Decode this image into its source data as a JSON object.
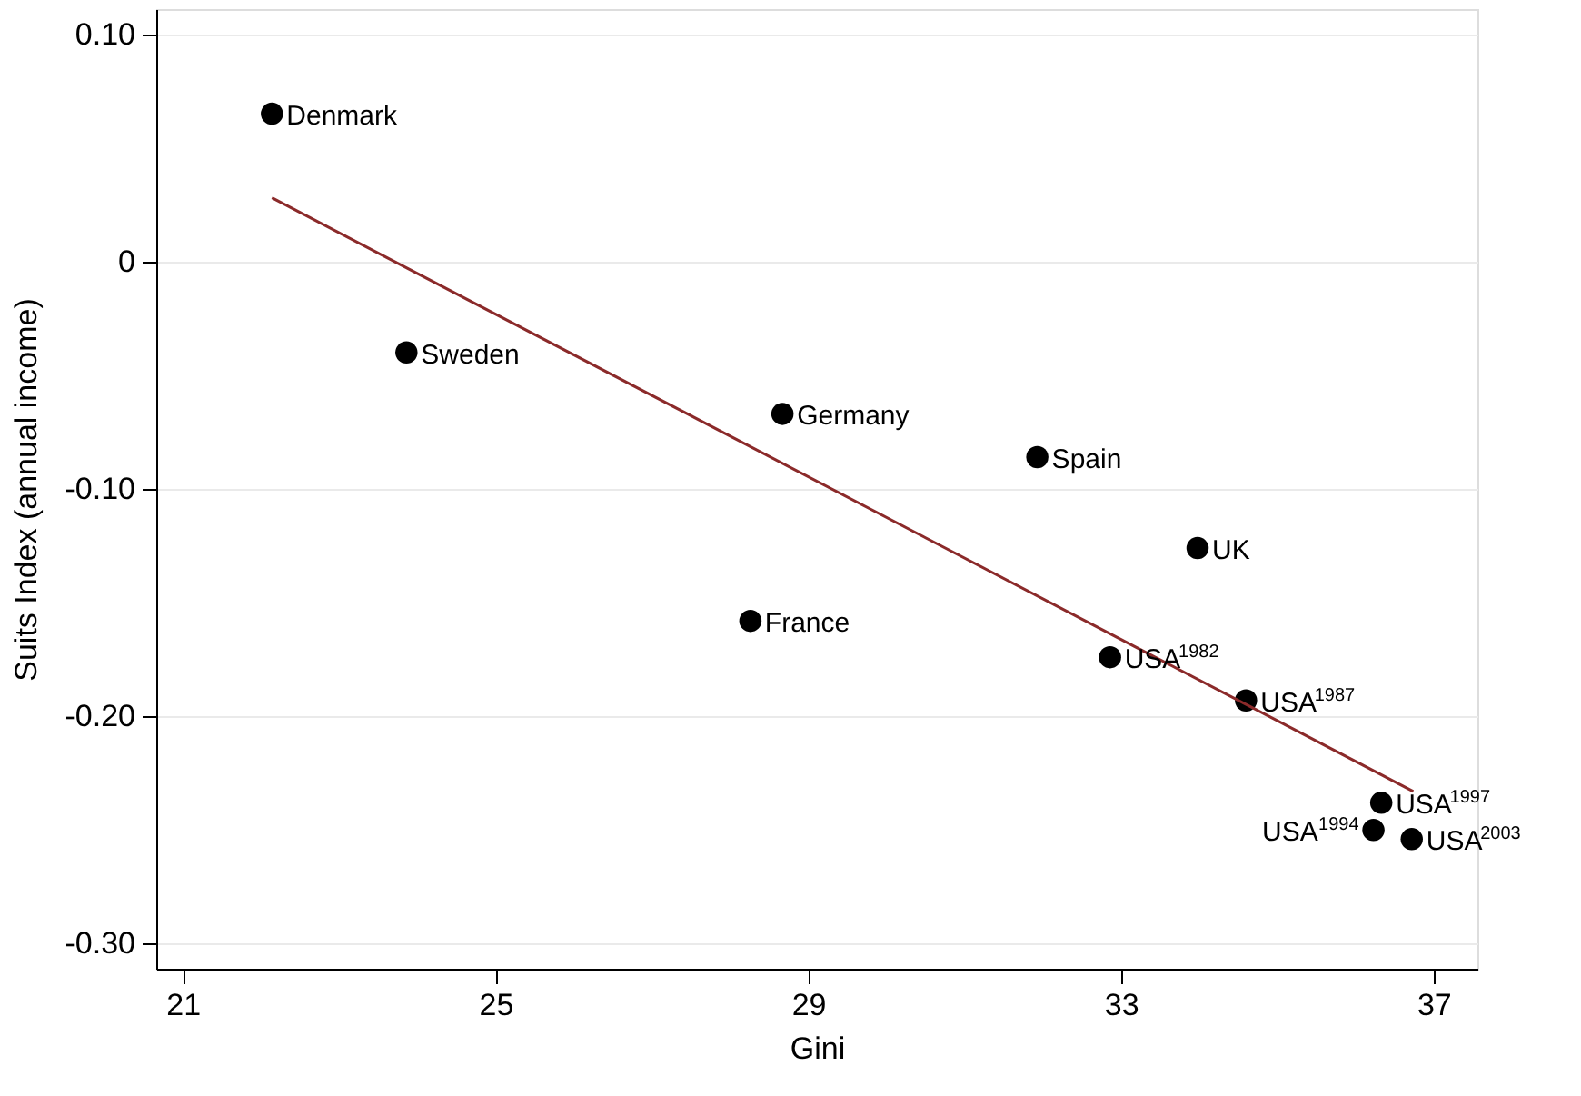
{
  "chart_data": {
    "type": "scatter",
    "xlabel": "Gini",
    "ylabel": "Suits Index (annual income)",
    "xlim": [
      20.66,
      37.56
    ],
    "ylim": [
      -0.311,
      0.111
    ],
    "xticks": [
      21,
      25,
      29,
      33,
      37
    ],
    "yticks": [
      {
        "value": 0.1,
        "label": "0.10"
      },
      0,
      {
        "value": -0.1,
        "label": "-0.10"
      },
      {
        "value": -0.2,
        "label": "-0.20"
      },
      {
        "value": -0.3,
        "label": "-0.30"
      }
    ],
    "grid": "y",
    "series": [
      {
        "marker": "circle",
        "color": "#000000",
        "x": [
          22.14,
          23.86,
          28.67,
          28.26,
          31.93,
          33.98,
          32.86,
          34.6,
          36.33,
          36.23,
          36.72
        ],
        "values": [
          0.065,
          -0.04,
          -0.067,
          -0.158,
          -0.086,
          -0.126,
          -0.174,
          -0.193,
          -0.238,
          -0.25,
          -0.254
        ]
      },
      {
        "type": "line",
        "color": "#8b2a2a",
        "x": [
          22.14,
          36.74
        ],
        "values": [
          0.028,
          -0.233
        ]
      }
    ],
    "annotations": [
      {
        "text": "Denmark",
        "x": 22.14,
        "y": 0.065
      },
      {
        "text": "Sweden",
        "x": 23.86,
        "y": -0.04
      },
      {
        "text": "Germany",
        "x": 28.67,
        "y": -0.067
      },
      {
        "text": "France",
        "x": 28.26,
        "y": -0.158
      },
      {
        "text": "Spain",
        "x": 31.93,
        "y": -0.086
      },
      {
        "text": "UK",
        "x": 33.98,
        "y": -0.126
      },
      {
        "text": "USA$^{1982}$",
        "x": 32.86,
        "y": -0.174
      },
      {
        "text": "USA$^{1987}$",
        "x": 34.6,
        "y": -0.193
      },
      {
        "text": "USA$^{1997}$",
        "x": 36.33,
        "y": -0.238
      },
      {
        "text": "USA$^{1994}$",
        "x": 36.23,
        "y": -0.25
      },
      {
        "text": "USA$^{2003}$",
        "x": 36.72,
        "y": -0.254
      }
    ]
  }
}
